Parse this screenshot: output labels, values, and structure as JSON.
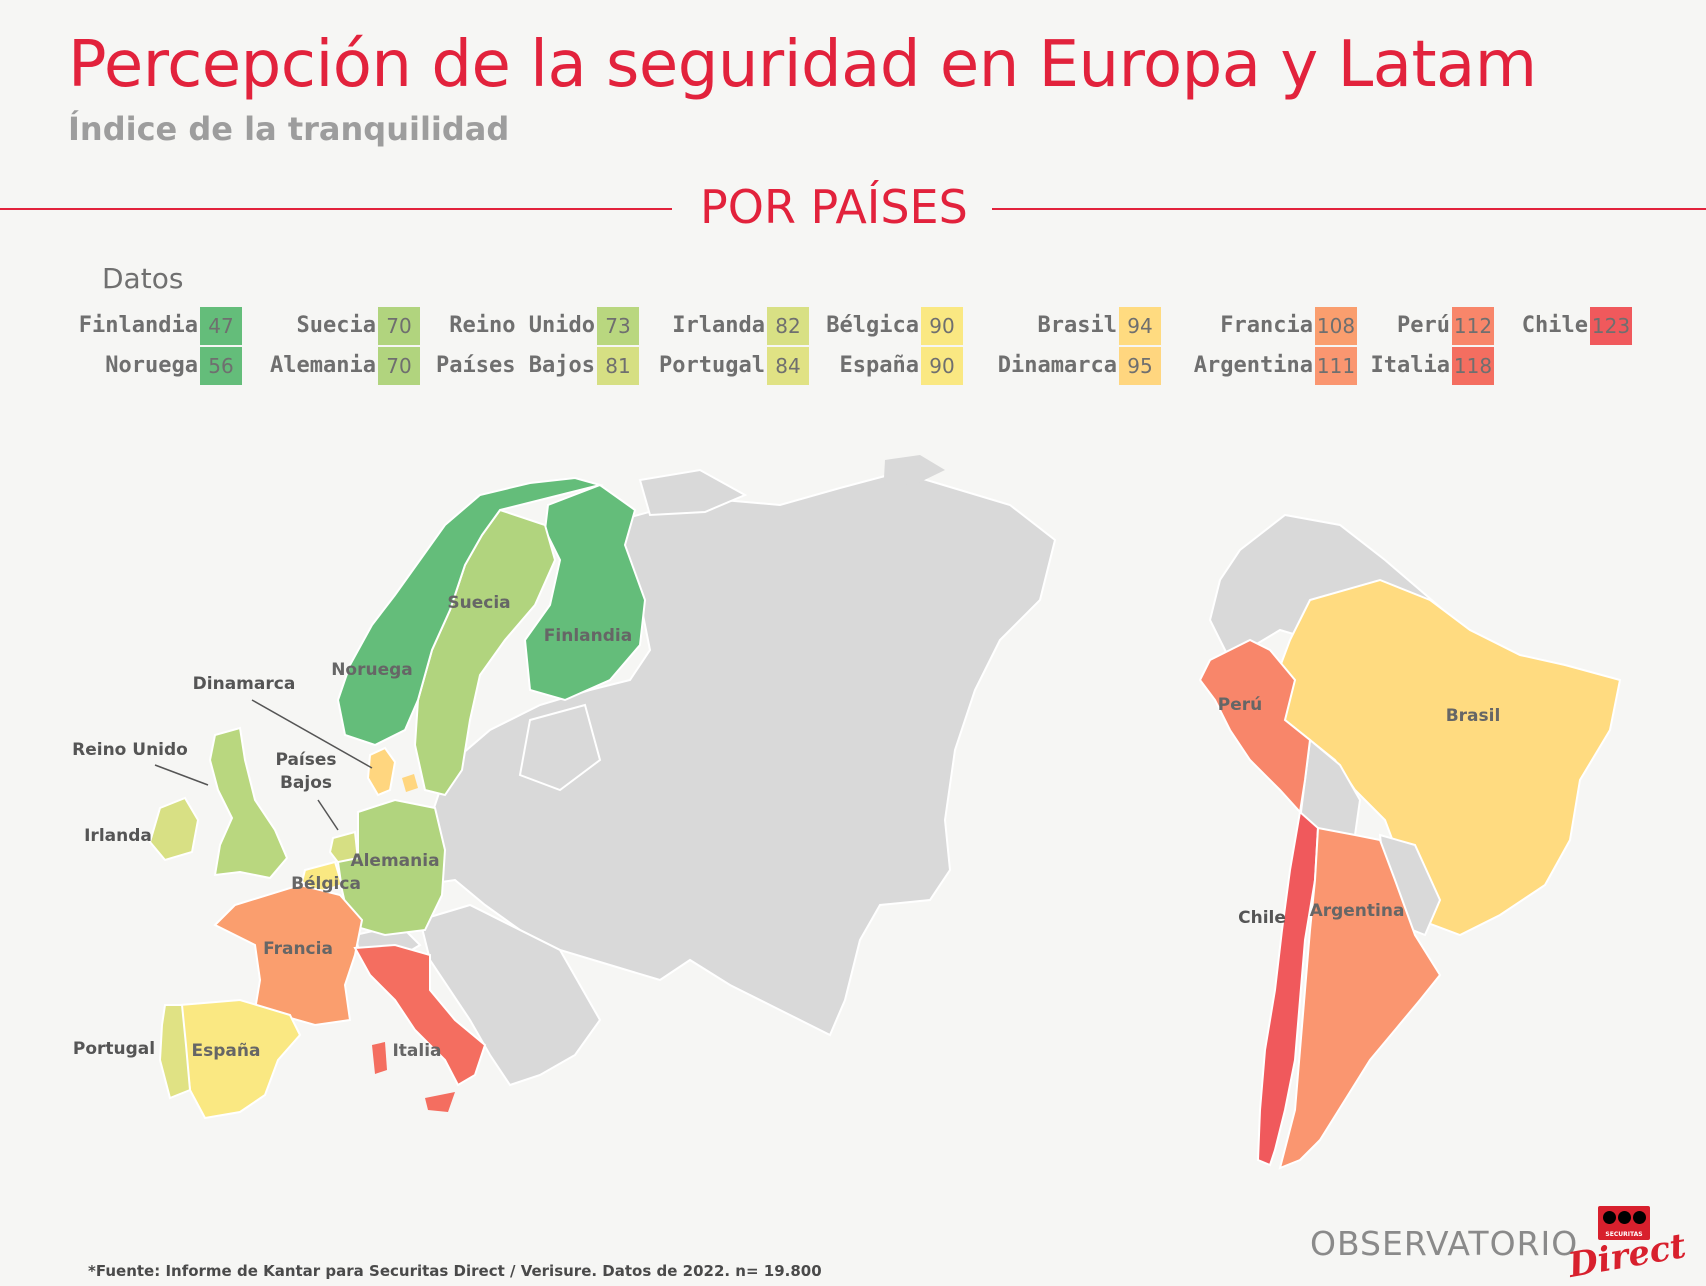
{
  "header": {
    "title": "Percepción de la seguridad en Europa y Latam",
    "subtitle": "Índice de la tranquilidad",
    "section": "POR PAÍSES"
  },
  "legend": {
    "label": "Datos",
    "items": [
      {
        "name": "Finlandia",
        "value": "47",
        "color": "#64bd7a"
      },
      {
        "name": "Noruega",
        "value": "56",
        "color": "#64bd7a"
      },
      {
        "name": "Suecia",
        "value": "70",
        "color": "#b1d47e"
      },
      {
        "name": "Alemania",
        "value": "70",
        "color": "#b1d47e"
      },
      {
        "name": "Reino Unido",
        "value": "73",
        "color": "#b9d77f"
      },
      {
        "name": "Países Bajos",
        "value": "81",
        "color": "#d6df83"
      },
      {
        "name": "Irlanda",
        "value": "82",
        "color": "#d8e084"
      },
      {
        "name": "Portugal",
        "value": "84",
        "color": "#e0e284"
      },
      {
        "name": "Bélgica",
        "value": "90",
        "color": "#fae882"
      },
      {
        "name": "España",
        "value": "90",
        "color": "#fae882"
      },
      {
        "name": "Brasil",
        "value": "94",
        "color": "#ffdb80"
      },
      {
        "name": "Dinamarca",
        "value": "95",
        "color": "#ffd67f"
      },
      {
        "name": "Francia",
        "value": "108",
        "color": "#fa9e6e"
      },
      {
        "name": "Argentina",
        "value": "111",
        "color": "#fa9670"
      },
      {
        "name": "Perú",
        "value": "112",
        "color": "#f8866a"
      },
      {
        "name": "Italia",
        "value": "118",
        "color": "#f46e60"
      },
      {
        "name": "Chile",
        "value": "123",
        "color": "#f0595c"
      }
    ]
  },
  "map_labels": {
    "finlandia": "Finlandia",
    "suecia": "Suecia",
    "noruega": "Noruega",
    "dinamarca": "Dinamarca",
    "reino_unido": "Reino Unido",
    "paises_bajos_1": "Países",
    "paises_bajos_2": "Bajos",
    "irlanda": "Irlanda",
    "alemania": "Alemania",
    "belgica": "Bélgica",
    "francia": "Francia",
    "portugal": "Portugal",
    "espana": "España",
    "italia": "Italia",
    "peru": "Perú",
    "brasil": "Brasil",
    "chile": "Chile",
    "argentina": "Argentina"
  },
  "colors": {
    "accent": "#e2223c",
    "neutral_land": "#d9d9d9",
    "background": "#f6f6f4"
  },
  "footer": {
    "footnote": "*Fuente: Informe de Kantar para Securitas Direct / Verisure. Datos de 2022. n= 19.800",
    "brand": "OBSERVATORIO",
    "logo_text": "SECURITAS",
    "logo_script": "Direct"
  }
}
